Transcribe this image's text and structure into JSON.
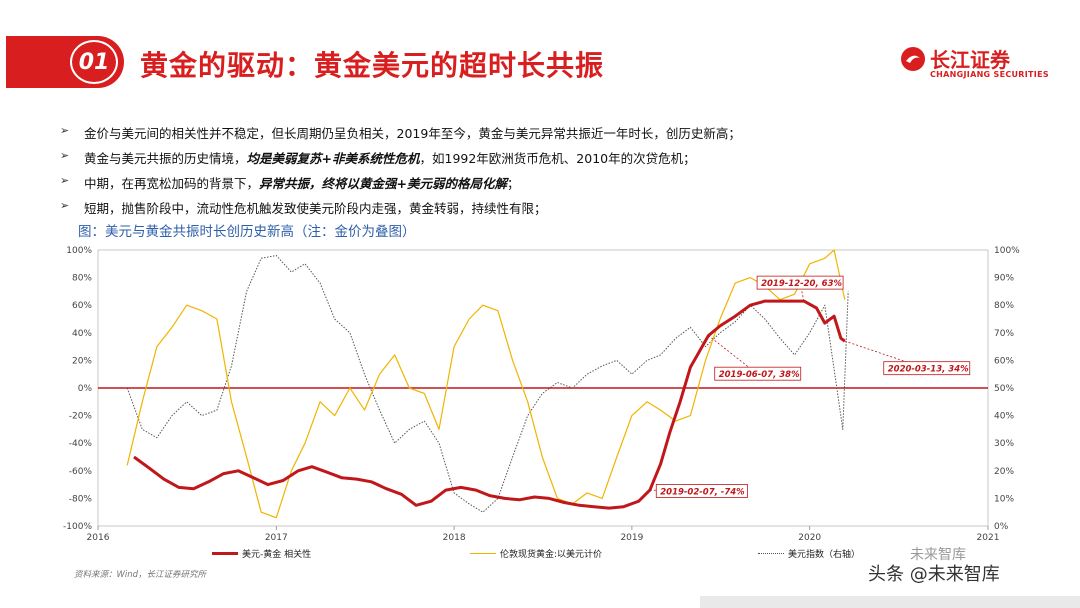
{
  "header": {
    "number": "01",
    "title": "黄金的驱动：黄金美元的超时长共振",
    "logo_cn": "长江证券",
    "logo_en": "CHANGJIANG SECURITIES"
  },
  "bullets": [
    {
      "pre": "金价与美元间的相关性并不稳定，但长周期仍呈负相关，2019年至今，黄金与美元异常共振近一年时长，创历史新高；",
      "em": "",
      "post": ""
    },
    {
      "pre": "黄金与美元共振的历史情境，",
      "em": "均是美弱复苏+非美系统性危机",
      "post": "，如1992年欧洲货币危机、2010年的次贷危机；"
    },
    {
      "pre": "中期，在再宽松加码的背景下，",
      "em": "异常共振，终将以黄金强+美元弱的格局化解",
      "post": "；"
    },
    {
      "pre": "短期，抛售阶段中，流动性危机触发致使美元阶段内走强，黄金转弱，持续性有限；",
      "em": "",
      "post": ""
    }
  ],
  "caption": "图：美元与黄金共振时长创历史新高（注：金价为叠图）",
  "source": "资料来源：Wind，长江证券研究所",
  "watermark": "头条 @未来智库",
  "watermark2": "未来智库",
  "colors": {
    "accent": "#d81e1e",
    "correlation": "#c0171a",
    "gold": "#f0b400",
    "dxy": "#555555"
  },
  "chart_data": {
    "type": "line",
    "xlim": [
      "2016-01-01",
      "2021-01-01"
    ],
    "x_ticks": [
      "2016",
      "2017",
      "2018",
      "2019",
      "2020",
      "2021"
    ],
    "y_left": {
      "ticks": [
        "-100%",
        "-80%",
        "-60%",
        "-40%",
        "-20%",
        "0%",
        "20%",
        "40%",
        "60%",
        "80%",
        "100%"
      ],
      "range": [
        -100,
        100
      ]
    },
    "y_right": {
      "ticks": [
        "0%",
        "10%",
        "20%",
        "30%",
        "40%",
        "50%",
        "60%",
        "70%",
        "80%",
        "90%",
        "100%"
      ],
      "range": [
        0,
        100
      ]
    },
    "zero_line_color": "#c0171a",
    "series": [
      {
        "name": "美元-黄金 相关性",
        "axis": "left",
        "style": "solid-thick",
        "color": "#c0171a",
        "points": [
          [
            "2016-03-15",
            -50
          ],
          [
            "2016-04-15",
            -58
          ],
          [
            "2016-05-15",
            -66
          ],
          [
            "2016-06-15",
            -72
          ],
          [
            "2016-07-15",
            -73
          ],
          [
            "2016-08-15",
            -68
          ],
          [
            "2016-09-15",
            -62
          ],
          [
            "2016-10-15",
            -60
          ],
          [
            "2016-11-15",
            -65
          ],
          [
            "2016-12-15",
            -70
          ],
          [
            "2017-01-15",
            -67
          ],
          [
            "2017-02-15",
            -60
          ],
          [
            "2017-03-15",
            -57
          ],
          [
            "2017-04-15",
            -61
          ],
          [
            "2017-05-15",
            -65
          ],
          [
            "2017-06-15",
            -66
          ],
          [
            "2017-07-15",
            -68
          ],
          [
            "2017-08-15",
            -73
          ],
          [
            "2017-09-15",
            -77
          ],
          [
            "2017-10-15",
            -85
          ],
          [
            "2017-11-15",
            -82
          ],
          [
            "2017-12-15",
            -74
          ],
          [
            "2018-01-15",
            -72
          ],
          [
            "2018-02-15",
            -74
          ],
          [
            "2018-03-15",
            -78
          ],
          [
            "2018-04-15",
            -80
          ],
          [
            "2018-05-15",
            -81
          ],
          [
            "2018-06-15",
            -79
          ],
          [
            "2018-07-15",
            -80
          ],
          [
            "2018-08-15",
            -83
          ],
          [
            "2018-09-15",
            -85
          ],
          [
            "2018-10-15",
            -86
          ],
          [
            "2018-11-15",
            -87
          ],
          [
            "2018-12-15",
            -86
          ],
          [
            "2019-01-15",
            -82
          ],
          [
            "2019-02-07",
            -74
          ],
          [
            "2019-03-01",
            -55
          ],
          [
            "2019-03-20",
            -32
          ],
          [
            "2019-04-10",
            -10
          ],
          [
            "2019-05-01",
            15
          ],
          [
            "2019-06-07",
            38
          ],
          [
            "2019-07-01",
            45
          ],
          [
            "2019-08-01",
            52
          ],
          [
            "2019-09-01",
            60
          ],
          [
            "2019-10-01",
            63
          ],
          [
            "2019-11-01",
            63
          ],
          [
            "2019-12-20",
            63
          ],
          [
            "2020-01-15",
            58
          ],
          [
            "2020-02-01",
            47
          ],
          [
            "2020-02-20",
            52
          ],
          [
            "2020-03-05",
            36
          ],
          [
            "2020-03-13",
            34
          ]
        ]
      },
      {
        "name": "伦敦现货黄金:以美元计价",
        "axis": "right",
        "style": "solid-thin",
        "color": "#f0b400",
        "points": [
          [
            "2016-03-01",
            22
          ],
          [
            "2016-04-01",
            45
          ],
          [
            "2016-05-01",
            65
          ],
          [
            "2016-06-01",
            72
          ],
          [
            "2016-07-01",
            80
          ],
          [
            "2016-08-01",
            78
          ],
          [
            "2016-09-01",
            75
          ],
          [
            "2016-10-01",
            45
          ],
          [
            "2016-11-01",
            25
          ],
          [
            "2016-12-01",
            5
          ],
          [
            "2017-01-01",
            3
          ],
          [
            "2017-02-01",
            20
          ],
          [
            "2017-03-01",
            30
          ],
          [
            "2017-04-01",
            45
          ],
          [
            "2017-05-01",
            40
          ],
          [
            "2017-06-01",
            50
          ],
          [
            "2017-07-01",
            42
          ],
          [
            "2017-08-01",
            55
          ],
          [
            "2017-09-01",
            62
          ],
          [
            "2017-10-01",
            50
          ],
          [
            "2017-11-01",
            48
          ],
          [
            "2017-12-01",
            35
          ],
          [
            "2018-01-01",
            65
          ],
          [
            "2018-02-01",
            75
          ],
          [
            "2018-03-01",
            80
          ],
          [
            "2018-04-01",
            78
          ],
          [
            "2018-05-01",
            60
          ],
          [
            "2018-06-01",
            45
          ],
          [
            "2018-07-01",
            25
          ],
          [
            "2018-08-01",
            10
          ],
          [
            "2018-09-01",
            8
          ],
          [
            "2018-10-01",
            12
          ],
          [
            "2018-11-01",
            10
          ],
          [
            "2018-12-01",
            25
          ],
          [
            "2019-01-01",
            40
          ],
          [
            "2019-02-01",
            45
          ],
          [
            "2019-03-01",
            42
          ],
          [
            "2019-04-01",
            38
          ],
          [
            "2019-05-01",
            40
          ],
          [
            "2019-06-01",
            60
          ],
          [
            "2019-07-01",
            75
          ],
          [
            "2019-08-01",
            88
          ],
          [
            "2019-09-01",
            90
          ],
          [
            "2019-10-01",
            87
          ],
          [
            "2019-11-01",
            82
          ],
          [
            "2019-12-01",
            84
          ],
          [
            "2020-01-01",
            95
          ],
          [
            "2020-02-01",
            97
          ],
          [
            "2020-02-20",
            100
          ],
          [
            "2020-03-13",
            82
          ]
        ]
      },
      {
        "name": "美元指数（右轴）",
        "axis": "right",
        "style": "dotted",
        "color": "#555555",
        "points": [
          [
            "2016-03-01",
            50
          ],
          [
            "2016-04-01",
            35
          ],
          [
            "2016-05-01",
            32
          ],
          [
            "2016-06-01",
            40
          ],
          [
            "2016-07-01",
            45
          ],
          [
            "2016-08-01",
            40
          ],
          [
            "2016-09-01",
            42
          ],
          [
            "2016-10-01",
            58
          ],
          [
            "2016-11-01",
            85
          ],
          [
            "2016-12-01",
            97
          ],
          [
            "2017-01-01",
            98
          ],
          [
            "2017-02-01",
            92
          ],
          [
            "2017-03-01",
            95
          ],
          [
            "2017-04-01",
            88
          ],
          [
            "2017-05-01",
            75
          ],
          [
            "2017-06-01",
            70
          ],
          [
            "2017-07-01",
            55
          ],
          [
            "2017-08-01",
            42
          ],
          [
            "2017-09-01",
            30
          ],
          [
            "2017-10-01",
            35
          ],
          [
            "2017-11-01",
            38
          ],
          [
            "2017-12-01",
            30
          ],
          [
            "2018-01-01",
            12
          ],
          [
            "2018-02-01",
            8
          ],
          [
            "2018-03-01",
            5
          ],
          [
            "2018-04-01",
            10
          ],
          [
            "2018-05-01",
            25
          ],
          [
            "2018-06-01",
            40
          ],
          [
            "2018-07-01",
            48
          ],
          [
            "2018-08-01",
            52
          ],
          [
            "2018-09-01",
            50
          ],
          [
            "2018-10-01",
            55
          ],
          [
            "2018-11-01",
            58
          ],
          [
            "2018-12-01",
            60
          ],
          [
            "2019-01-01",
            55
          ],
          [
            "2019-02-01",
            60
          ],
          [
            "2019-03-01",
            62
          ],
          [
            "2019-04-01",
            68
          ],
          [
            "2019-05-01",
            72
          ],
          [
            "2019-06-01",
            65
          ],
          [
            "2019-07-01",
            70
          ],
          [
            "2019-08-01",
            74
          ],
          [
            "2019-09-01",
            80
          ],
          [
            "2019-10-01",
            75
          ],
          [
            "2019-11-01",
            68
          ],
          [
            "2019-12-01",
            62
          ],
          [
            "2020-01-01",
            70
          ],
          [
            "2020-02-01",
            80
          ],
          [
            "2020-03-09",
            35
          ],
          [
            "2020-03-20",
            85
          ]
        ]
      }
    ],
    "annotations": [
      {
        "label": "2019-12-20, 63%",
        "date": "2019-12-20",
        "value": 63,
        "label_at": [
          "2019-09-15",
          76
        ]
      },
      {
        "label": "2019-06-07, 38%",
        "date": "2019-06-07",
        "value": 38,
        "label_at": [
          "2019-06-20",
          10
        ]
      },
      {
        "label": "2020-03-13, 34%",
        "date": "2020-03-13",
        "value": 34,
        "label_at": [
          "2020-06-01",
          14
        ]
      },
      {
        "label": "2019-02-07, -74%",
        "date": "2019-02-07",
        "value": -74,
        "label_at": [
          "2019-02-20",
          -75
        ]
      }
    ]
  }
}
